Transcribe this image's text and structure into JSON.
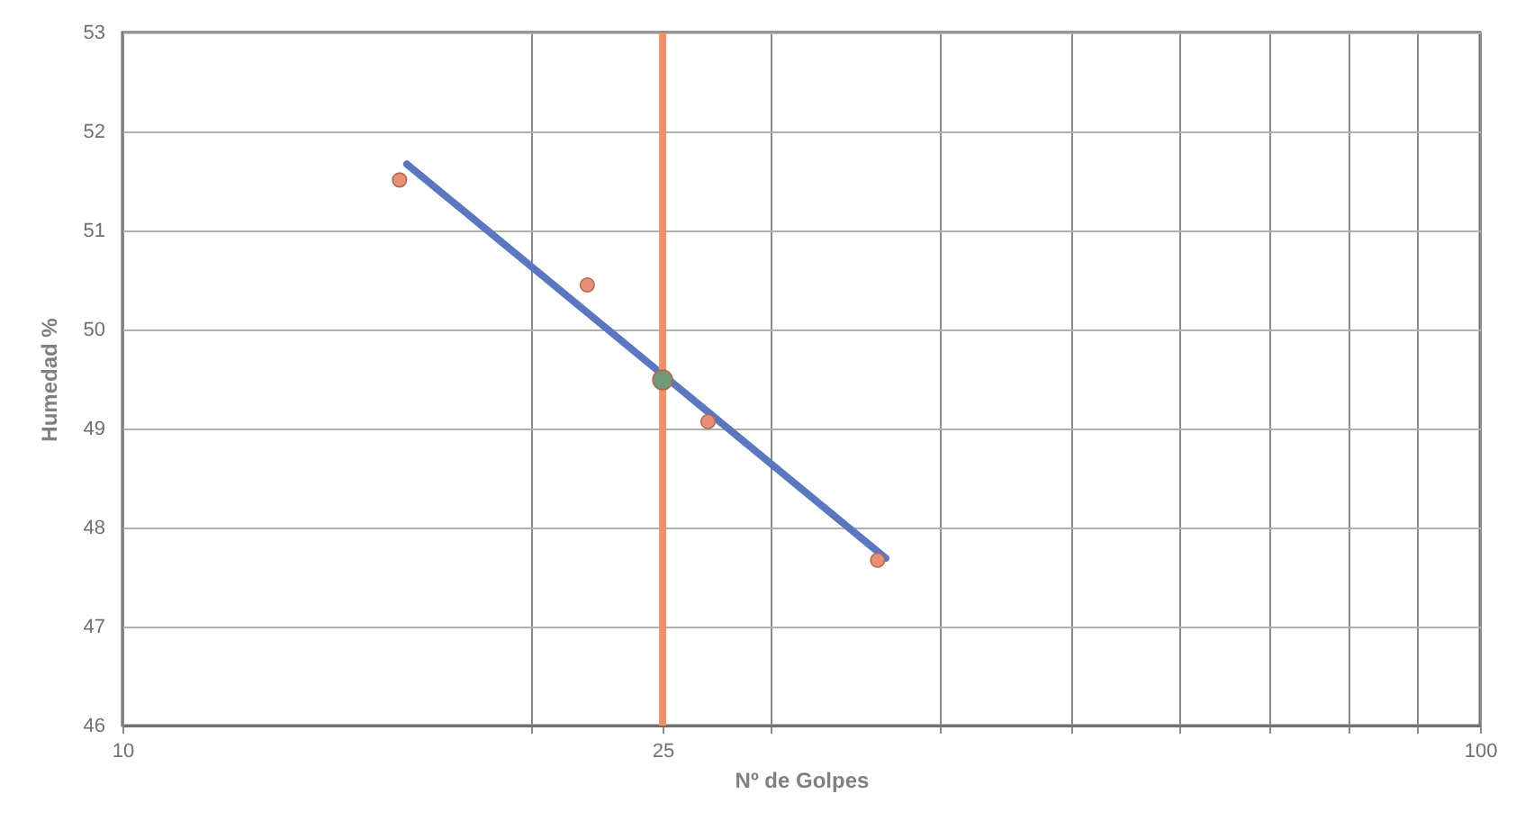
{
  "chart_data": {
    "type": "scatter",
    "xlabel": "Nº de Golpes",
    "ylabel": "Humedad %",
    "xlim": [
      10,
      100
    ],
    "ylim": [
      46,
      53
    ],
    "log": "x",
    "grid": true,
    "marker": "circle",
    "xticks": [
      10,
      {
        "value": 20,
        "label": null
      },
      25,
      {
        "value": 30,
        "label": null
      },
      {
        "value": 40,
        "label": null
      },
      {
        "value": 50,
        "label": null
      },
      {
        "value": 60,
        "label": null
      },
      {
        "value": 70,
        "label": null
      },
      {
        "value": 80,
        "label": null
      },
      {
        "value": 90,
        "label": null
      },
      100
    ],
    "yticks": [
      46,
      47,
      48,
      49,
      50,
      51,
      52,
      53
    ],
    "series": [
      {
        "type": "line",
        "color": "#5a77c0",
        "x": [
          16.2,
          36.5
        ],
        "values": [
          51.67,
          47.69
        ],
        "marker": "none"
      },
      {
        "color": "#e8907a",
        "x": [
          16,
          22,
          27,
          36
        ],
        "values": [
          51.51,
          50.45,
          49.07,
          47.67
        ]
      },
      {
        "color": "#6f9a7a",
        "x": [
          25
        ],
        "values": [
          49.49
        ]
      }
    ],
    "ref_lines": [
      {
        "axis": "x",
        "value": 25,
        "color": "#f0906a"
      }
    ]
  }
}
